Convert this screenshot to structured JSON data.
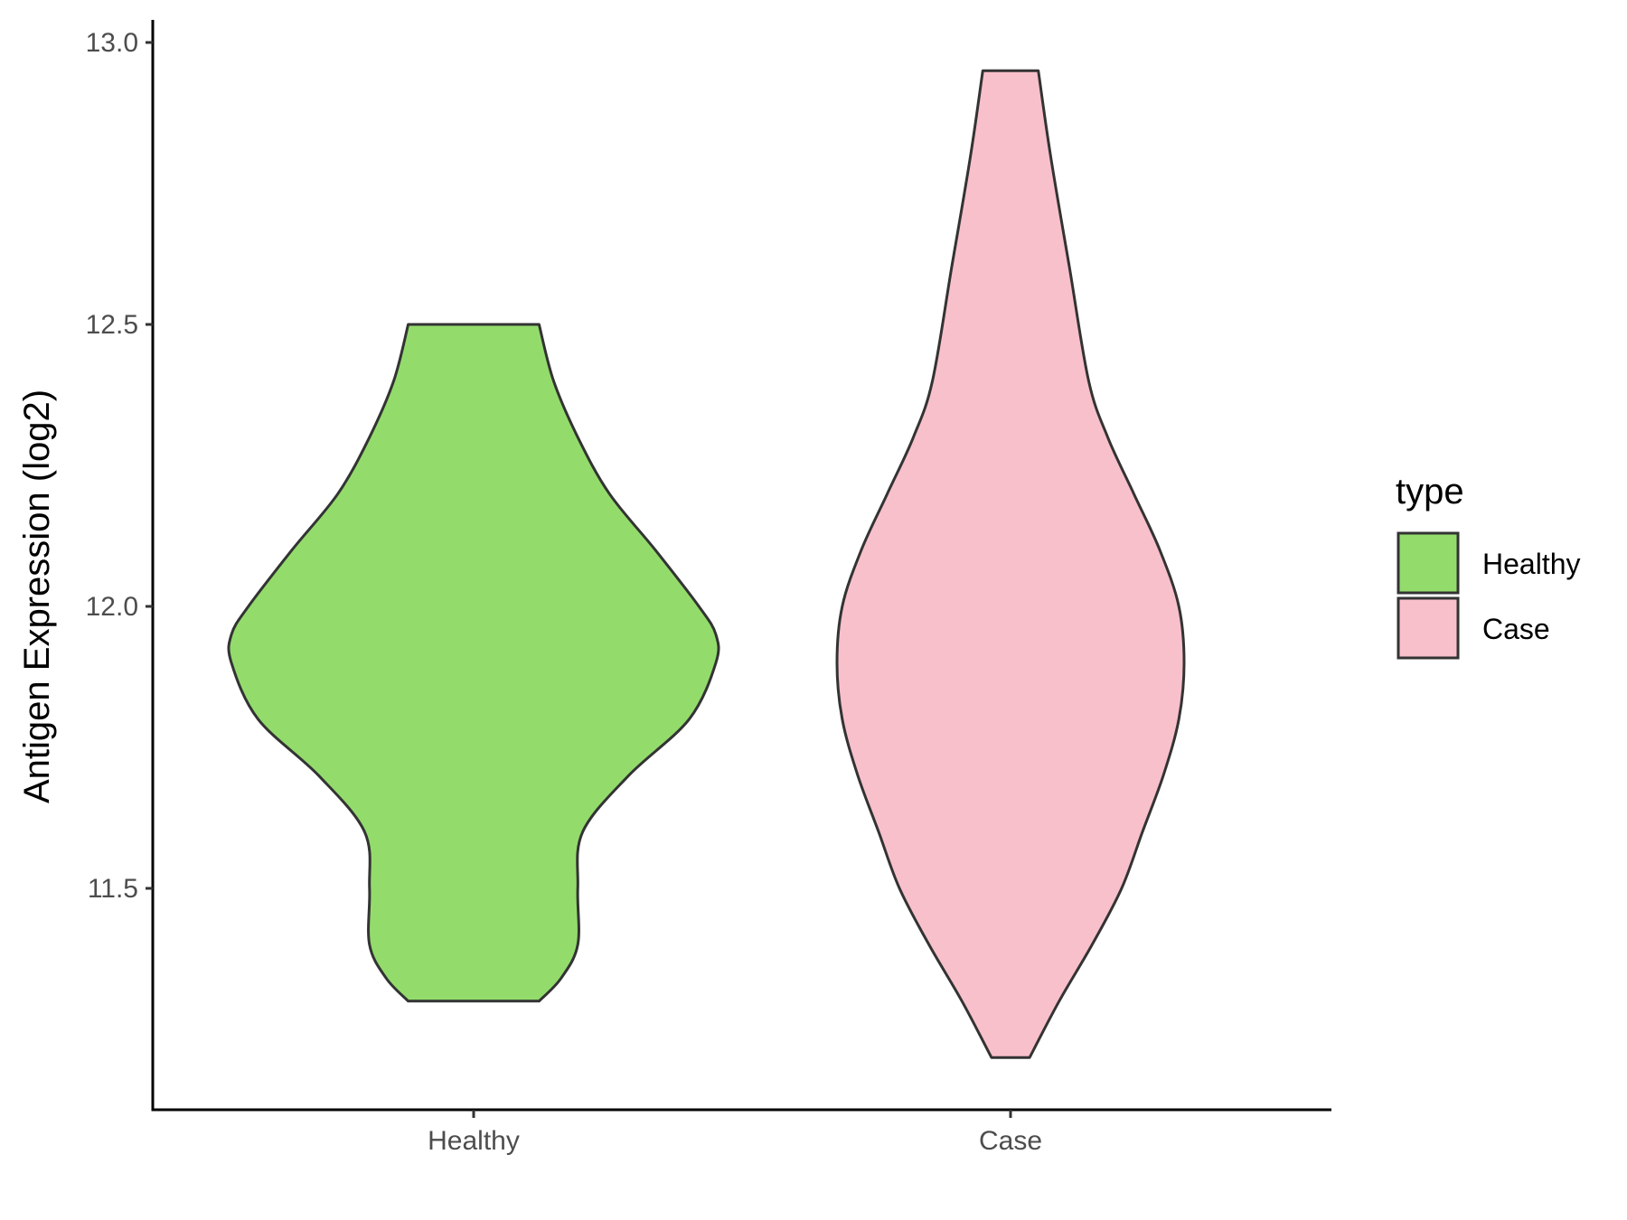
{
  "chart_data": {
    "type": "violin",
    "ylabel": "Antigen Expression (log2)",
    "xlabel": "",
    "ylim": [
      11.12,
      13.05
    ],
    "yticks": [
      11.5,
      12.0,
      12.5,
      13.0
    ],
    "ytick_labels": [
      "11.5",
      "12.0",
      "12.5",
      "13.0"
    ],
    "categories": [
      "Healthy",
      "Case"
    ],
    "legend": {
      "title": "type",
      "position": "right",
      "entries": [
        "Healthy",
        "Case"
      ]
    },
    "grid": false,
    "series": [
      {
        "name": "Healthy",
        "color": "#93dc6c",
        "min": 11.3,
        "max": 12.5,
        "profile": [
          {
            "y": 11.3,
            "w": 0.27
          },
          {
            "y": 11.34,
            "w": 0.36
          },
          {
            "y": 11.4,
            "w": 0.43
          },
          {
            "y": 11.5,
            "w": 0.43
          },
          {
            "y": 11.6,
            "w": 0.45
          },
          {
            "y": 11.7,
            "w": 0.64
          },
          {
            "y": 11.8,
            "w": 0.89
          },
          {
            "y": 11.9,
            "w": 1.0
          },
          {
            "y": 11.95,
            "w": 1.0
          },
          {
            "y": 12.0,
            "w": 0.93
          },
          {
            "y": 12.1,
            "w": 0.75
          },
          {
            "y": 12.2,
            "w": 0.56
          },
          {
            "y": 12.3,
            "w": 0.43
          },
          {
            "y": 12.4,
            "w": 0.33
          },
          {
            "y": 12.5,
            "w": 0.27
          }
        ]
      },
      {
        "name": "Case",
        "color": "#f8c0cb",
        "min": 11.2,
        "max": 12.95,
        "profile": [
          {
            "y": 11.2,
            "w": 0.11
          },
          {
            "y": 11.3,
            "w": 0.28
          },
          {
            "y": 11.4,
            "w": 0.47
          },
          {
            "y": 11.5,
            "w": 0.64
          },
          {
            "y": 11.6,
            "w": 0.76
          },
          {
            "y": 11.7,
            "w": 0.88
          },
          {
            "y": 11.8,
            "w": 0.97
          },
          {
            "y": 11.9,
            "w": 1.0
          },
          {
            "y": 12.0,
            "w": 0.97
          },
          {
            "y": 12.1,
            "w": 0.86
          },
          {
            "y": 12.2,
            "w": 0.71
          },
          {
            "y": 12.3,
            "w": 0.56
          },
          {
            "y": 12.4,
            "w": 0.45
          },
          {
            "y": 12.6,
            "w": 0.34
          },
          {
            "y": 12.8,
            "w": 0.23
          },
          {
            "y": 12.95,
            "w": 0.16
          }
        ]
      }
    ]
  }
}
